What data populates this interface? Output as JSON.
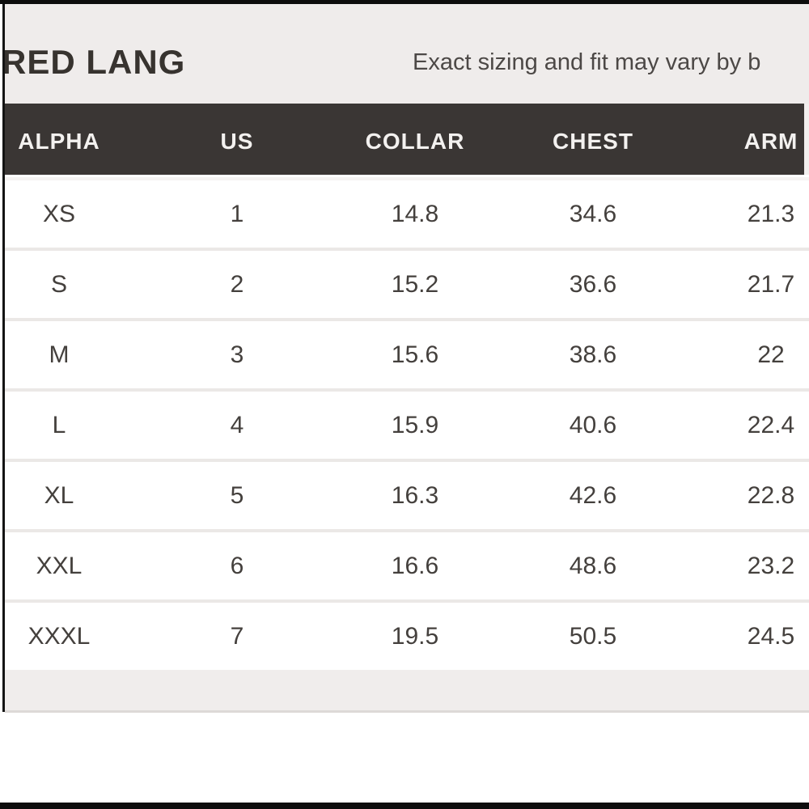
{
  "header": {
    "brand_title": "RED LANG",
    "fit_note": "Exact sizing and fit may vary by b"
  },
  "size_table": {
    "columns": [
      "ALPHA",
      "US",
      "COLLAR",
      "CHEST",
      "ARM"
    ],
    "rows": [
      [
        "XS",
        "1",
        "14.8",
        "34.6",
        "21.3"
      ],
      [
        "S",
        "2",
        "15.2",
        "36.6",
        "21.7"
      ],
      [
        "M",
        "3",
        "15.6",
        "38.6",
        "22"
      ],
      [
        "L",
        "4",
        "15.9",
        "40.6",
        "22.4"
      ],
      [
        "XL",
        "5",
        "16.3",
        "42.6",
        "22.8"
      ],
      [
        "XXL",
        "6",
        "16.6",
        "48.6",
        "23.2"
      ],
      [
        "XXXL",
        "7",
        "19.5",
        "50.5",
        "24.5"
      ]
    ]
  },
  "colors": {
    "panel_bg": "#efeceb",
    "header_bar_bg": "#3a3634",
    "header_bar_text": "#f3f1ef",
    "title_text": "#37332f",
    "note_text": "#4c4846",
    "row_text": "#44403d",
    "row_separator": "#ebe8e6",
    "footer_strip_bg": "#f0edec",
    "frame_edge": "#0d0d0d"
  }
}
